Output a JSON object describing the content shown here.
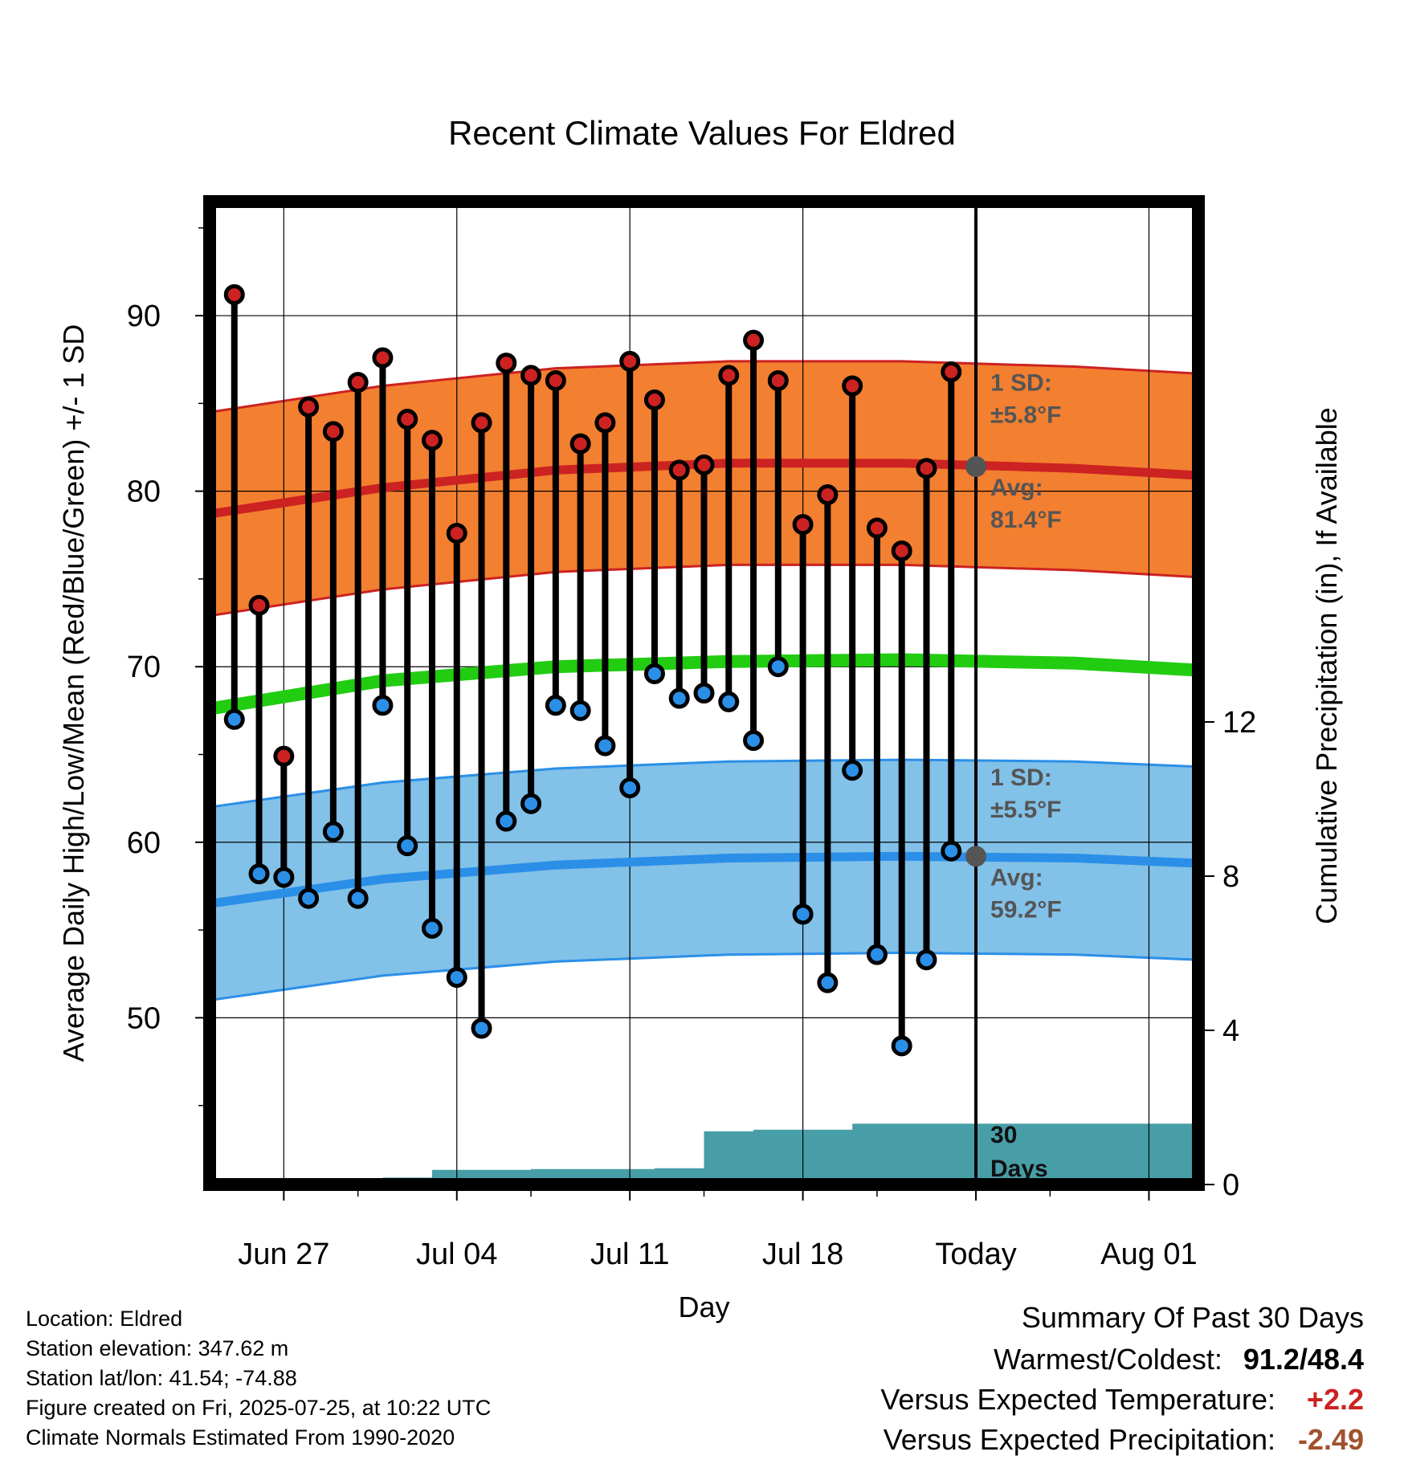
{
  "chart_data": {
    "type": "line",
    "title": "Recent Climate Values For Eldred",
    "xlabel": "Day",
    "ylabel_left": "Average Daily High/Low/Mean (Red/Blue/Green) +/- 1 SD",
    "ylabel_right": "Cumulative Precipitation (in), If Available",
    "x_tick_labels": [
      "Jun 27",
      "Jul 04",
      "Jul 11",
      "Jul 18",
      "Today",
      "Aug 01"
    ],
    "y_left_ticks": [
      "50",
      "60",
      "70",
      "80",
      "90"
    ],
    "y_right_ticks": [
      "0",
      "4",
      "8",
      "12"
    ],
    "ylim_left": [
      40.5,
      96.5
    ],
    "ylim_right": [
      0,
      25.5
    ],
    "grid": true,
    "dates": [
      "Jun 25",
      "Jun 26",
      "Jun 27",
      "Jun 28",
      "Jun 29",
      "Jun 30",
      "Jul 01",
      "Jul 02",
      "Jul 03",
      "Jul 04",
      "Jul 05",
      "Jul 06",
      "Jul 07",
      "Jul 08",
      "Jul 09",
      "Jul 10",
      "Jul 11",
      "Jul 12",
      "Jul 13",
      "Jul 14",
      "Jul 15",
      "Jul 16",
      "Jul 17",
      "Jul 18",
      "Jul 19",
      "Jul 20",
      "Jul 21",
      "Jul 22",
      "Jul 23",
      "Jul 24"
    ],
    "series": [
      {
        "name": "High",
        "color": "#cc2222",
        "values": [
          91.2,
          73.5,
          64.9,
          84.8,
          83.4,
          86.2,
          87.6,
          84.1,
          82.9,
          77.6,
          83.9,
          87.3,
          86.6,
          86.3,
          82.7,
          83.9,
          87.4,
          85.2,
          81.2,
          81.5,
          86.6,
          88.6,
          86.3,
          78.1,
          79.8,
          86.0,
          77.9,
          76.6,
          81.3,
          86.8
        ]
      },
      {
        "name": "Low",
        "color": "#2b8fe8",
        "values": [
          67.0,
          58.2,
          58.0,
          56.8,
          60.6,
          56.8,
          67.8,
          59.8,
          55.1,
          52.3,
          49.4,
          61.2,
          62.2,
          67.8,
          67.5,
          65.5,
          63.1,
          69.6,
          68.2,
          68.5,
          68.0,
          65.8,
          70.0,
          55.9,
          52.0,
          64.1,
          53.6,
          48.4,
          53.3,
          59.5
        ]
      }
    ],
    "normals": {
      "x": [
        "Jun 24",
        "Jul 01",
        "Jul 08",
        "Jul 15",
        "Jul 22",
        "Jul 29",
        "Aug 03"
      ],
      "high_mean": [
        78.7,
        80.2,
        81.2,
        81.6,
        81.6,
        81.3,
        80.9
      ],
      "high_sd": 5.8,
      "low_mean": [
        56.5,
        57.9,
        58.7,
        59.1,
        59.2,
        59.1,
        58.8
      ],
      "low_sd": 5.5,
      "mean": [
        67.6,
        69.2,
        70.0,
        70.3,
        70.4,
        70.2,
        69.8
      ],
      "high_color": "#cc2222",
      "high_band_color": "#f37f30",
      "low_color": "#2b8fe8",
      "low_band_color": "#82c1e8",
      "mean_color": "#22cc11"
    },
    "precip": {
      "x": [
        "Jun 24",
        "Jun 25",
        "Jun 26",
        "Jun 27",
        "Jun 28",
        "Jun 29",
        "Jun 30",
        "Jul 01",
        "Jul 02",
        "Jul 03",
        "Jul 04",
        "Jul 05",
        "Jul 06",
        "Jul 07",
        "Jul 08",
        "Jul 09",
        "Jul 10",
        "Jul 11",
        "Jul 12",
        "Jul 13",
        "Jul 14",
        "Jul 15",
        "Jul 16",
        "Jul 17",
        "Jul 18",
        "Jul 19",
        "Jul 20",
        "Jul 21",
        "Jul 22",
        "Jul 23",
        "Jul 24",
        "Jul 25",
        "Aug 03"
      ],
      "values": [
        0,
        0,
        0.04,
        0.06,
        0.08,
        0.08,
        0.08,
        0.18,
        0.18,
        0.38,
        0.38,
        0.38,
        0.38,
        0.4,
        0.4,
        0.4,
        0.4,
        0.4,
        0.42,
        0.42,
        1.38,
        1.38,
        1.42,
        1.42,
        1.42,
        1.42,
        1.58,
        1.58,
        1.58,
        1.58,
        1.58,
        1.58,
        1.58
      ],
      "color": "#479ea7"
    },
    "today": "Jul 25",
    "today_avg_high": 81.4,
    "today_avg_low": 59.2,
    "annotations": {
      "high_sd_label": "1 SD:",
      "high_sd_value": "±5.8°F",
      "high_avg_label": "Avg:",
      "high_avg_value": "81.4°F",
      "low_sd_label": "1 SD:",
      "low_sd_value": "±5.5°F",
      "low_avg_label": "Avg:",
      "low_avg_value": "59.2°F",
      "days_num": "30",
      "days_word": "Days"
    }
  },
  "footer": {
    "location": "Location: Eldred",
    "elevation": "Station elevation: 347.62 m",
    "latlon": "Station lat/lon: 41.54; -74.88",
    "created": "Figure created on Fri, 2025-07-25, at 10:22 UTC",
    "normals": "Climate Normals Estimated From 1990-2020"
  },
  "summary": {
    "title": "Summary Of Past 30 Days",
    "warm_cold_label": "Warmest/Coldest:",
    "warm_cold_value": "91.2/48.4",
    "temp_label": "Versus Expected Temperature:",
    "temp_value": "+2.2",
    "temp_color": "#cc2222",
    "precip_label": "Versus Expected Precipitation:",
    "precip_value": "-2.49",
    "precip_color": "#a0522d"
  }
}
